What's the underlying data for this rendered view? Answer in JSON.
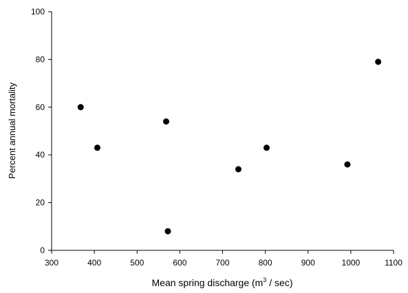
{
  "chart_data": {
    "type": "scatter",
    "xlabel": "Mean spring discharge (m",
    "xlabel_superscript": "3",
    "xlabel_suffix": " / sec)",
    "ylabel": "Percent annual mortality",
    "xlim": [
      300,
      1100
    ],
    "ylim": [
      0,
      100
    ],
    "x_ticks": [
      300,
      400,
      500,
      600,
      700,
      800,
      900,
      1000,
      1100
    ],
    "y_ticks": [
      0,
      20,
      40,
      60,
      80,
      100
    ],
    "grid": false,
    "marker_color": "#000000",
    "points": [
      {
        "x": 368,
        "y": 60
      },
      {
        "x": 407,
        "y": 43
      },
      {
        "x": 568,
        "y": 54
      },
      {
        "x": 572,
        "y": 8
      },
      {
        "x": 737,
        "y": 34
      },
      {
        "x": 803,
        "y": 43
      },
      {
        "x": 992,
        "y": 36
      },
      {
        "x": 1064,
        "y": 79
      }
    ]
  }
}
